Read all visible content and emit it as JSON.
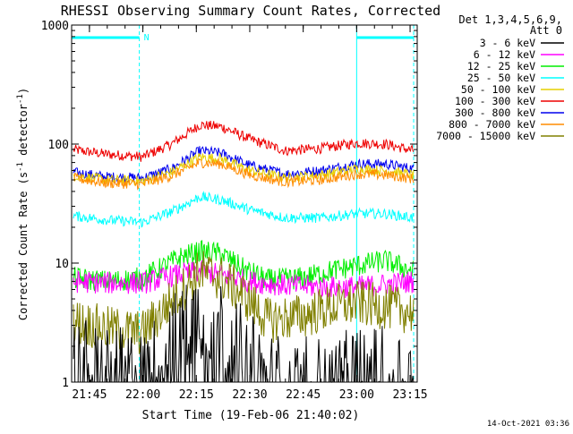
{
  "chart_data": {
    "type": "line",
    "title": "RHESSI Observing Summary Count Rates, Corrected",
    "xlabel": "Start Time (19-Feb-06 21:40:02)",
    "ylabel": "Corrected Count Rate (s⁻¹ detector⁻¹)",
    "x_axis": {
      "unit": "UT time (hh:mm)",
      "range": [
        "21:40",
        "23:17"
      ],
      "tick_labels": [
        "21:45",
        "22:00",
        "22:15",
        "22:30",
        "22:45",
        "23:00",
        "23:15"
      ]
    },
    "y_axis": {
      "scale": "log",
      "range": [
        1,
        1000
      ],
      "tick_labels": [
        "1",
        "10",
        "100",
        "1000"
      ]
    },
    "grid": false,
    "legend": {
      "placement": "right",
      "header_lines": [
        "Det 1,3,4,5,6,9,",
        "Att 0"
      ],
      "entries": [
        {
          "name": "3 - 6 keV",
          "color": "#000000"
        },
        {
          "name": "6 - 12 keV",
          "color": "#ff00ff"
        },
        {
          "name": "12 - 25 keV",
          "color": "#00ee00"
        },
        {
          "name": "25 - 50 keV",
          "color": "#00ffff"
        },
        {
          "name": "50 - 100 keV",
          "color": "#e6d000"
        },
        {
          "name": "100 - 300 keV",
          "color": "#ee0000"
        },
        {
          "name": "300 - 800 keV",
          "color": "#0000ee"
        },
        {
          "name": "800 - 7000 keV",
          "color": "#ff8c00"
        },
        {
          "name": "7000 - 15000 keV",
          "color": "#808000"
        }
      ]
    },
    "annotations": {
      "night_flag_label": "N",
      "night_intervals": [
        [
          "21:40",
          "21:59"
        ],
        [
          "23:00",
          "23:16"
        ]
      ],
      "vertical_markers": [
        "21:59",
        "23:00",
        "23:16"
      ]
    },
    "series": [
      {
        "name": "100 - 300 keV",
        "color": "#ee0000",
        "points": [
          [
            "21:40",
            90
          ],
          [
            "21:50",
            82
          ],
          [
            "22:00",
            78
          ],
          [
            "22:08",
            100
          ],
          [
            "22:16",
            145
          ],
          [
            "22:22",
            140
          ],
          [
            "22:30",
            110
          ],
          [
            "22:40",
            88
          ],
          [
            "22:50",
            92
          ],
          [
            "23:00",
            102
          ],
          [
            "23:08",
            100
          ],
          [
            "23:16",
            88
          ]
        ]
      },
      {
        "name": "300 - 800 keV",
        "color": "#0000ee",
        "points": [
          [
            "21:40",
            58
          ],
          [
            "21:50",
            53
          ],
          [
            "22:00",
            52
          ],
          [
            "22:08",
            62
          ],
          [
            "22:16",
            88
          ],
          [
            "22:22",
            84
          ],
          [
            "22:30",
            66
          ],
          [
            "22:40",
            56
          ],
          [
            "22:50",
            60
          ],
          [
            "23:00",
            68
          ],
          [
            "23:08",
            68
          ],
          [
            "23:16",
            62
          ]
        ]
      },
      {
        "name": "50 - 100 keV",
        "color": "#e6d000",
        "points": [
          [
            "21:40",
            55
          ],
          [
            "21:50",
            50
          ],
          [
            "22:00",
            49
          ],
          [
            "22:08",
            58
          ],
          [
            "22:16",
            78
          ],
          [
            "22:22",
            75
          ],
          [
            "22:30",
            60
          ],
          [
            "22:40",
            52
          ],
          [
            "22:50",
            55
          ],
          [
            "23:00",
            62
          ],
          [
            "23:08",
            60
          ],
          [
            "23:16",
            55
          ]
        ]
      },
      {
        "name": "800 - 7000 keV",
        "color": "#ff8c00",
        "points": [
          [
            "21:40",
            52
          ],
          [
            "21:50",
            47
          ],
          [
            "22:00",
            46
          ],
          [
            "22:08",
            54
          ],
          [
            "22:16",
            70
          ],
          [
            "22:22",
            68
          ],
          [
            "22:30",
            55
          ],
          [
            "22:40",
            48
          ],
          [
            "22:50",
            50
          ],
          [
            "23:00",
            56
          ],
          [
            "23:08",
            55
          ],
          [
            "23:16",
            51
          ]
        ]
      },
      {
        "name": "25 - 50 keV",
        "color": "#00ffff",
        "points": [
          [
            "21:40",
            25
          ],
          [
            "21:50",
            23
          ],
          [
            "22:00",
            22
          ],
          [
            "22:08",
            27
          ],
          [
            "22:16",
            36
          ],
          [
            "22:22",
            34
          ],
          [
            "22:30",
            28
          ],
          [
            "22:40",
            24
          ],
          [
            "22:50",
            24
          ],
          [
            "23:00",
            26
          ],
          [
            "23:08",
            26
          ],
          [
            "23:16",
            24
          ]
        ]
      },
      {
        "name": "12 - 25 keV",
        "color": "#00ee00",
        "points": [
          [
            "21:40",
            7.5
          ],
          [
            "21:50",
            7
          ],
          [
            "22:00",
            7.5
          ],
          [
            "22:05",
            9
          ],
          [
            "22:10",
            11
          ],
          [
            "22:16",
            12.5
          ],
          [
            "22:22",
            12
          ],
          [
            "22:28",
            9
          ],
          [
            "22:35",
            7.2
          ],
          [
            "22:45",
            7.5
          ],
          [
            "22:52",
            8.5
          ],
          [
            "23:00",
            9.5
          ],
          [
            "23:08",
            10.5
          ],
          [
            "23:16",
            8.5
          ]
        ]
      },
      {
        "name": "6 - 12 keV",
        "color": "#ff00ff",
        "points": [
          [
            "21:40",
            7
          ],
          [
            "21:50",
            6.8
          ],
          [
            "22:00",
            6.8
          ],
          [
            "22:10",
            8
          ],
          [
            "22:16",
            8.5
          ],
          [
            "22:22",
            8
          ],
          [
            "22:30",
            7
          ],
          [
            "22:40",
            6.5
          ],
          [
            "22:50",
            6.3
          ],
          [
            "23:00",
            6.3
          ],
          [
            "23:08",
            6.6
          ],
          [
            "23:16",
            7
          ]
        ]
      },
      {
        "name": "7000 - 15000 keV",
        "color": "#808000",
        "points": [
          [
            "21:40",
            3.3
          ],
          [
            "21:50",
            2.8
          ],
          [
            "22:00",
            2.6
          ],
          [
            "22:08",
            4.8
          ],
          [
            "22:16",
            8.5
          ],
          [
            "22:22",
            7.5
          ],
          [
            "22:28",
            5.5
          ],
          [
            "22:35",
            3.3
          ],
          [
            "22:45",
            3.6
          ],
          [
            "22:52",
            4.2
          ],
          [
            "23:00",
            4.6
          ],
          [
            "23:08",
            4.3
          ],
          [
            "23:16",
            3.9
          ]
        ]
      },
      {
        "name": "3 - 6 keV",
        "color": "#000000",
        "points": [
          [
            "21:40",
            1.5
          ],
          [
            "21:50",
            1.3
          ],
          [
            "22:00",
            1.1
          ],
          [
            "22:08",
            2.2
          ],
          [
            "22:16",
            3.8
          ],
          [
            "22:22",
            3.2
          ],
          [
            "22:28",
            1.8
          ],
          [
            "22:35",
            1.1
          ],
          [
            "22:45",
            1.0
          ],
          [
            "22:55",
            1.0
          ],
          [
            "23:00",
            1.3
          ],
          [
            "23:08",
            1.2
          ],
          [
            "23:16",
            1.2
          ]
        ]
      }
    ]
  },
  "footer": {
    "timestamp": "14-Oct-2021 03:36"
  }
}
